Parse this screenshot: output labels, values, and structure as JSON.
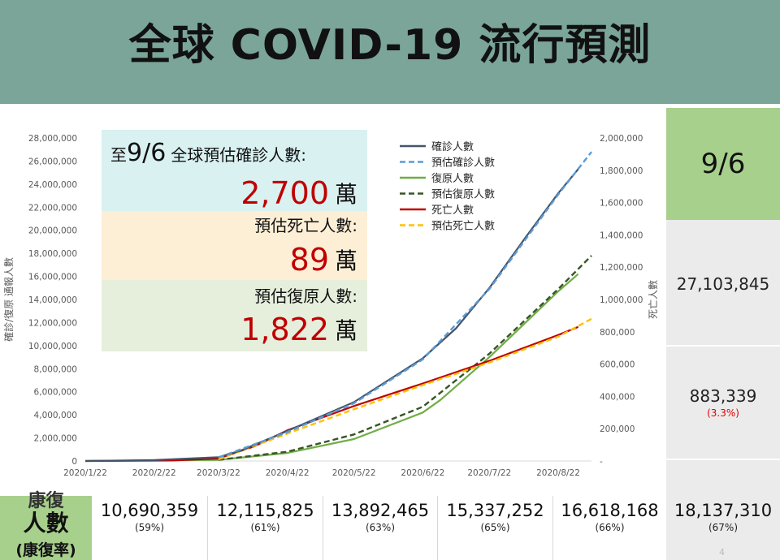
{
  "title": "全球 COVID-19 流行預測",
  "side": {
    "date": "9/6",
    "confirmed": "27,103,845",
    "deaths": "883,339",
    "death_rate": "(3.3%)"
  },
  "bottom": {
    "label_line1": "康復",
    "label_line2": "人數",
    "label_line3": "(康復率)",
    "cells": [
      {
        "value": "10,690,359",
        "pct": "(59%)"
      },
      {
        "value": "12,115,825",
        "pct": "(61%)"
      },
      {
        "value": "13,892,465",
        "pct": "(63%)"
      },
      {
        "value": "15,337,252",
        "pct": "(65%)"
      },
      {
        "value": "16,618,168",
        "pct": "(66%)"
      },
      {
        "value": "18,137,310",
        "pct": "(67%)"
      }
    ],
    "page_number": "4"
  },
  "info_boxes": {
    "confirmed_label_prefix": "至",
    "confirmed_label_date": "9/6",
    "confirmed_label_suffix": "全球預估確診人數:",
    "confirmed_value": "2,700",
    "death_label": "預估死亡人數:",
    "death_value": "89",
    "recovered_label": "預估復原人數:",
    "recovered_value": "1,822",
    "unit": "萬"
  },
  "colors": {
    "header_bg": "#7aa598",
    "side_green": "#a8d08d",
    "confirmed": "#44546a",
    "pred_confirmed": "#5b9bd5",
    "recovered": "#70ad47",
    "pred_recovered": "#375623",
    "deaths": "#c00000",
    "pred_deaths": "#ffc000",
    "value_red": "#c00000",
    "box_blue": "#d9f1f1",
    "box_orange": "#fcefd6",
    "box_green": "#e6efdc"
  },
  "chart_data": {
    "type": "line",
    "x_ticks": [
      "2020/1/22",
      "2020/2/22",
      "2020/3/22",
      "2020/4/22",
      "2020/5/22",
      "2020/6/22",
      "2020/7/22",
      "2020/8/22"
    ],
    "x_range": [
      "2020-01-22",
      "2020-09-06"
    ],
    "ylabel_left": "確診/復原 通報人數",
    "ylabel_right": "死亡人數",
    "ylim_left": [
      0,
      28000000
    ],
    "ylim_right": [
      0,
      2000000
    ],
    "y_ticks_left": [
      "0",
      "2,000,000",
      "4,000,000",
      "6,000,000",
      "8,000,000",
      "10,000,000",
      "12,000,000",
      "14,000,000",
      "16,000,000",
      "18,000,000",
      "20,000,000",
      "22,000,000",
      "24,000,000",
      "26,000,000",
      "28,000,000"
    ],
    "y_ticks_right": [
      "-",
      "200,000",
      "400,000",
      "600,000",
      "800,000",
      "1,000,000",
      "1,200,000",
      "1,400,000",
      "1,600,000",
      "1,800,000",
      "2,000,000"
    ],
    "legend_position": "top-right",
    "series": [
      {
        "name": "確診人數",
        "axis": "left",
        "style": "solid",
        "color_key": "confirmed",
        "points": [
          [
            "2020-01-22",
            0
          ],
          [
            "2020-02-22",
            80000
          ],
          [
            "2020-03-22",
            330000
          ],
          [
            "2020-04-01",
            900000
          ],
          [
            "2020-04-22",
            2600000
          ],
          [
            "2020-05-22",
            5100000
          ],
          [
            "2020-06-22",
            8900000
          ],
          [
            "2020-07-07",
            11500000
          ],
          [
            "2020-07-22",
            15000000
          ],
          [
            "2020-08-07",
            19300000
          ],
          [
            "2020-08-22",
            23200000
          ],
          [
            "2020-08-31",
            25300000
          ]
        ]
      },
      {
        "name": "預估確診人數",
        "axis": "left",
        "style": "dashed",
        "color_key": "pred_confirmed",
        "points": [
          [
            "2020-03-22",
            300000
          ],
          [
            "2020-04-22",
            2500000
          ],
          [
            "2020-05-22",
            5000000
          ],
          [
            "2020-06-22",
            8800000
          ],
          [
            "2020-07-22",
            14900000
          ],
          [
            "2020-08-22",
            23100000
          ],
          [
            "2020-09-06",
            26800000
          ]
        ]
      },
      {
        "name": "復原人數",
        "axis": "left",
        "style": "solid",
        "color_key": "recovered",
        "points": [
          [
            "2020-01-22",
            0
          ],
          [
            "2020-03-22",
            100000
          ],
          [
            "2020-04-22",
            700000
          ],
          [
            "2020-05-22",
            1900000
          ],
          [
            "2020-06-22",
            4200000
          ],
          [
            "2020-06-30",
            5300000
          ],
          [
            "2020-07-22",
            9000000
          ],
          [
            "2020-08-22",
            14700000
          ],
          [
            "2020-08-31",
            16200000
          ]
        ]
      },
      {
        "name": "預估復原人數",
        "axis": "left",
        "style": "dashed",
        "color_key": "pred_recovered",
        "points": [
          [
            "2020-03-22",
            100000
          ],
          [
            "2020-04-22",
            800000
          ],
          [
            "2020-05-22",
            2300000
          ],
          [
            "2020-06-22",
            4700000
          ],
          [
            "2020-07-22",
            9300000
          ],
          [
            "2020-08-22",
            14900000
          ],
          [
            "2020-09-06",
            17800000
          ]
        ]
      },
      {
        "name": "死亡人數",
        "axis": "right",
        "style": "solid",
        "color_key": "deaths",
        "points": [
          [
            "2020-01-22",
            0
          ],
          [
            "2020-03-01",
            3000
          ],
          [
            "2020-03-22",
            15000
          ],
          [
            "2020-04-07",
            90000
          ],
          [
            "2020-04-22",
            190000
          ],
          [
            "2020-05-22",
            340000
          ],
          [
            "2020-06-22",
            480000
          ],
          [
            "2020-07-22",
            620000
          ],
          [
            "2020-08-22",
            780000
          ],
          [
            "2020-08-31",
            830000
          ]
        ]
      },
      {
        "name": "預估死亡人數",
        "axis": "right",
        "style": "dashed",
        "color_key": "pred_deaths",
        "points": [
          [
            "2020-03-22",
            10000
          ],
          [
            "2020-04-22",
            170000
          ],
          [
            "2020-05-22",
            320000
          ],
          [
            "2020-06-22",
            470000
          ],
          [
            "2020-07-22",
            610000
          ],
          [
            "2020-08-22",
            770000
          ],
          [
            "2020-09-06",
            880000
          ]
        ]
      }
    ]
  }
}
